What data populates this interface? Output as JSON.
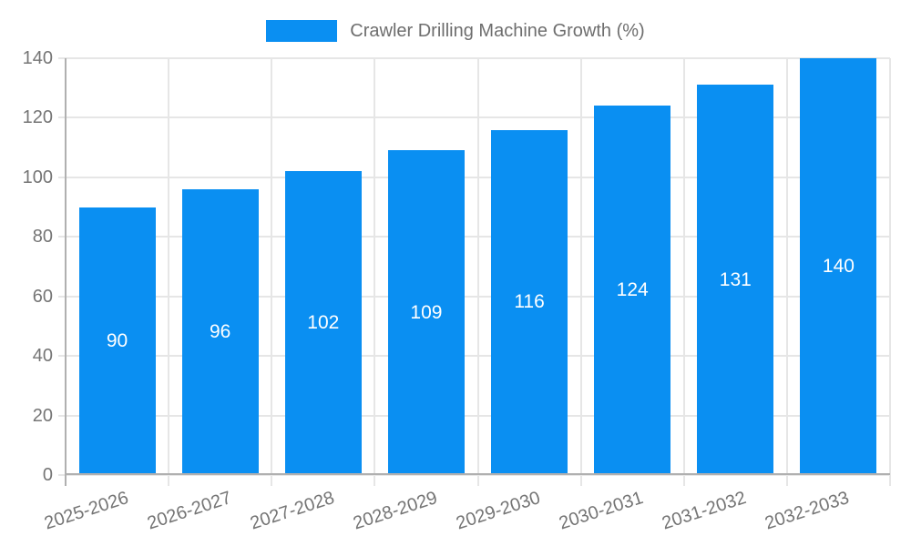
{
  "legend": {
    "label": "Crawler Drilling Machine Growth (%)"
  },
  "colors": {
    "background": "#ffffff",
    "bar": "#0a8ff2",
    "axis": "#b0b0b0",
    "grid": "#e6e6e6",
    "tick_label": "#757575",
    "legend_text": "#6e6e6e",
    "value_label": "#ffffff"
  },
  "chart_data": {
    "type": "bar",
    "title": "",
    "categories": [
      "2025-2026",
      "2026-2027",
      "2027-2028",
      "2028-2029",
      "2029-2030",
      "2030-2031",
      "2031-2032",
      "2032-2033"
    ],
    "series": [
      {
        "name": "Crawler Drilling Machine Growth (%)",
        "values": [
          90,
          96,
          102,
          109,
          116,
          124,
          131,
          140
        ]
      }
    ],
    "xlabel": "",
    "ylabel": "",
    "ylim": [
      0,
      140
    ],
    "yticks": [
      0,
      20,
      40,
      60,
      80,
      100,
      120,
      140
    ],
    "grid": true,
    "legend_position": "top-center",
    "value_labels": "inside-middle",
    "x_label_rotation_deg": -18
  }
}
